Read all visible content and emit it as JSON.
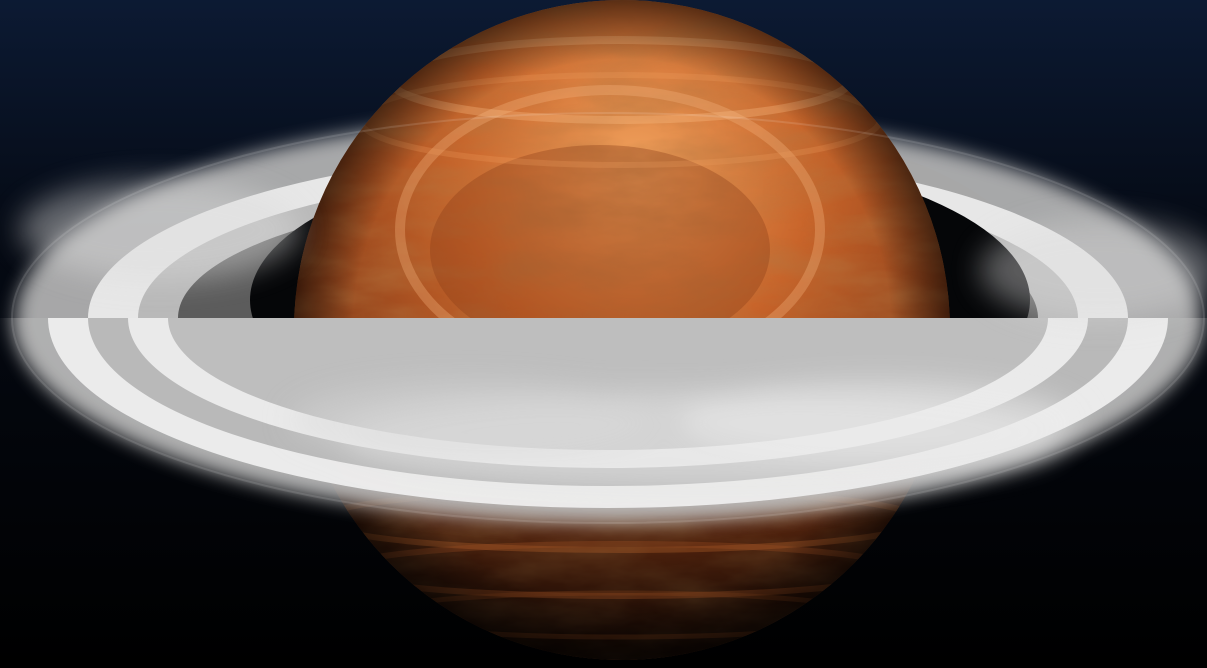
{
  "scene": {
    "subject": "ringed-planet",
    "colors": {
      "space_top": "#0c1a33",
      "space_mid": "#050a14",
      "space_bottom": "#000000",
      "planet_highlight": "#f2a35e",
      "planet_mid": "#c8642a",
      "planet_deep": "#7a3414",
      "planet_shadow": "#2a1006",
      "ring_bright": "#f2f2f2",
      "ring_mid": "#b9b9b9",
      "ring_dark": "#5c5c5c",
      "ring_shadow": "#050608"
    }
  }
}
